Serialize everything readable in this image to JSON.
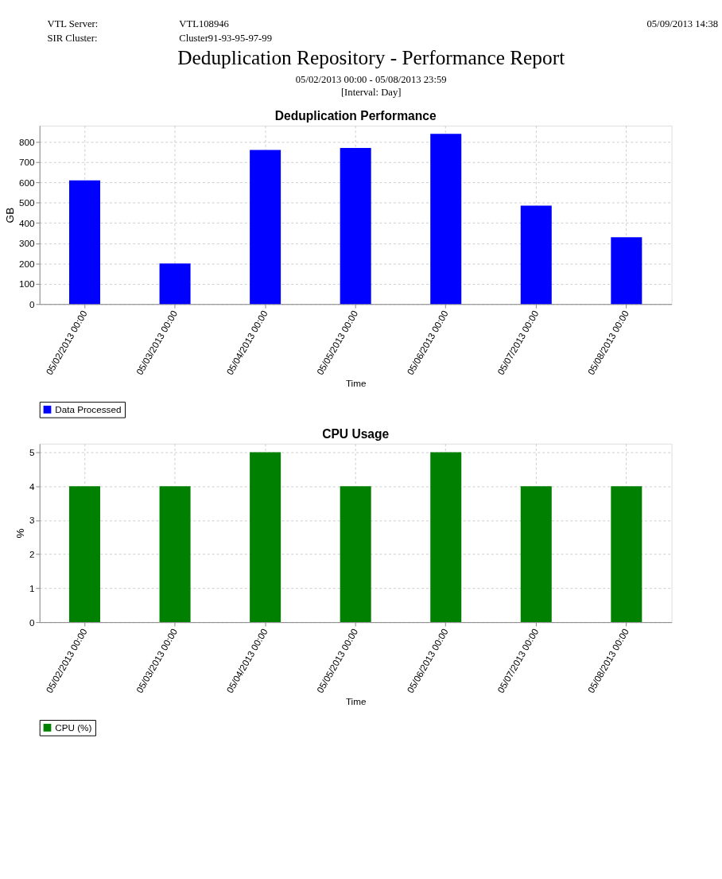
{
  "chart_data": [
    {
      "type": "other",
      "title": "Deduplication Repository - Performance Report",
      "subtitle": "05/02/2013 00:00 - 05/08/2013 23:59",
      "annotations": [
        "VTL Server:",
        "VTL108946",
        "SIR Cluster:",
        "Cluster91-93-95-97-99",
        "05/09/2013 14:38",
        "[Interval: Day]"
      ]
    },
    {
      "type": "bar",
      "title": "Deduplication Performance",
      "xlabel": "Time",
      "ylabel": "GB",
      "categories": [
        "05/02/2013 00:00",
        "05/03/2013 00:00",
        "05/04/2013 00:00",
        "05/05/2013 00:00",
        "05/06/2013 00:00",
        "05/07/2013 00:00",
        "05/08/2013 00:00"
      ],
      "series": [
        {
          "name": "Data Processed",
          "color": "#0000ff",
          "values": [
            610,
            200,
            760,
            770,
            840,
            485,
            330
          ]
        }
      ],
      "ylim": [
        0,
        880
      ],
      "yticks": [
        0,
        100,
        200,
        300,
        400,
        500,
        600,
        700,
        800
      ],
      "grid": true,
      "legend": "bottom"
    },
    {
      "type": "bar",
      "title": "CPU Usage",
      "xlabel": "Time",
      "ylabel": "%",
      "categories": [
        "05/02/2013 00:00",
        "05/03/2013 00:00",
        "05/04/2013 00:00",
        "05/05/2013 00:00",
        "05/06/2013 00:00",
        "05/07/2013 00:00",
        "05/08/2013 00:00"
      ],
      "series": [
        {
          "name": "CPU (%)",
          "color": "#008000",
          "values": [
            4,
            4,
            5,
            4,
            5,
            4,
            4
          ]
        }
      ],
      "ylim": [
        0,
        5.25
      ],
      "yticks": [
        0,
        1,
        2,
        3,
        4,
        5
      ],
      "grid": true,
      "legend": "bottom"
    }
  ]
}
